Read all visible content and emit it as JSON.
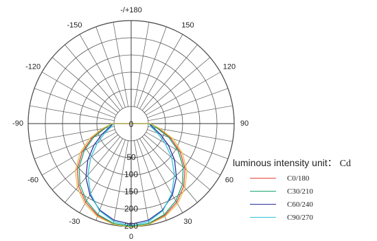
{
  "chart_data": {
    "type": "polar",
    "title": "",
    "angle_labels": [
      "0",
      "30",
      "60",
      "90",
      "120",
      "150",
      "-/+180",
      "-150",
      "-120",
      "-90",
      "-60",
      "-30"
    ],
    "angle_label_degrees": [
      0,
      30,
      60,
      90,
      120,
      150,
      180,
      -150,
      -120,
      -90,
      -60,
      -30
    ],
    "radial_ticks": [
      0,
      50,
      100,
      150,
      200,
      250
    ],
    "radial_max": 250,
    "legend_title": "luminous intensity unit：",
    "legend_unit": "Cd",
    "legend_placement": "right",
    "series": [
      {
        "name": "C0/180",
        "color": "#e8413a",
        "gamma": [
          0,
          10,
          20,
          30,
          40,
          50,
          60,
          70,
          80,
          90
        ],
        "intensity": [
          251,
          247,
          235,
          215,
          188,
          155,
          115,
          72,
          30,
          5
        ]
      },
      {
        "name": "C30/210",
        "color": "#1aa870",
        "gamma": [
          0,
          10,
          20,
          30,
          40,
          50,
          60,
          70,
          80,
          90
        ],
        "intensity": [
          250,
          245,
          232,
          210,
          182,
          148,
          108,
          66,
          27,
          4
        ]
      },
      {
        "name": "C60/240",
        "color": "#2b2f9e",
        "gamma": [
          0,
          10,
          20,
          30,
          40,
          50,
          60,
          70,
          80,
          90
        ],
        "intensity": [
          243,
          236,
          218,
          190,
          155,
          115,
          75,
          40,
          15,
          3
        ]
      },
      {
        "name": "C90/270",
        "color": "#2ec4d6",
        "gamma": [
          0,
          10,
          20,
          30,
          40,
          50,
          60,
          70,
          80,
          90
        ],
        "intensity": [
          248,
          240,
          220,
          186,
          146,
          104,
          64,
          32,
          10,
          2
        ]
      },
      {
        "name": "",
        "color": "#e0c24a",
        "gamma": [
          0,
          10,
          20,
          30,
          40,
          50,
          60,
          70,
          80,
          90
        ],
        "intensity": [
          252,
          248,
          238,
          220,
          194,
          162,
          122,
          80,
          36,
          6
        ]
      }
    ]
  }
}
